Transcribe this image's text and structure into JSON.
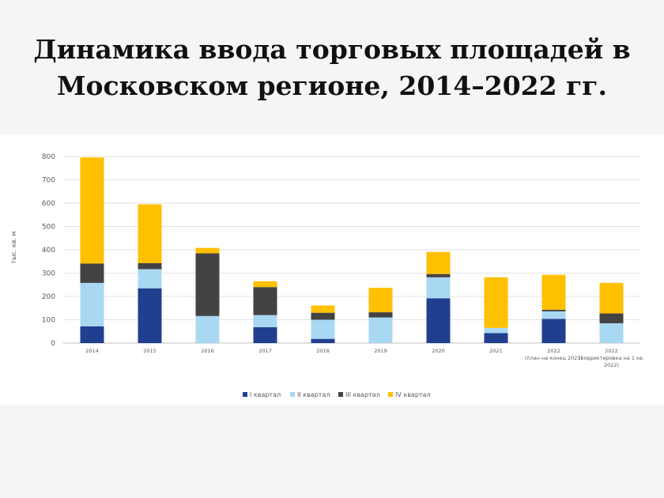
{
  "slide": {
    "title_line1": "Динамика ввода торговых площадей в",
    "title_line2": "Московском регионе, 2014–2022 гг."
  },
  "chart_data": {
    "type": "bar",
    "stacked": true,
    "ylabel": "тыс. кв. м",
    "ylim": [
      0,
      800
    ],
    "yticks": [
      0,
      100,
      200,
      300,
      400,
      500,
      600,
      700,
      800
    ],
    "grid": true,
    "legend_position": "bottom",
    "categories": [
      [
        "2014"
      ],
      [
        "2015"
      ],
      [
        "2016"
      ],
      [
        "2017"
      ],
      [
        "2018"
      ],
      [
        "2019"
      ],
      [
        "2020"
      ],
      [
        "2021"
      ],
      [
        "2022",
        "(план на конец 2021)"
      ],
      [
        "2022",
        "(корректировка на 1 кв.",
        "2022)"
      ]
    ],
    "series": [
      {
        "name": "I квартал",
        "color": "#203f8f",
        "values": [
          72,
          235,
          0,
          68,
          18,
          0,
          192,
          43,
          104,
          0
        ]
      },
      {
        "name": "II квартал",
        "color": "#a9d8f3",
        "values": [
          186,
          82,
          116,
          52,
          82,
          110,
          90,
          22,
          32,
          85
        ]
      },
      {
        "name": "III квартал",
        "color": "#434343",
        "values": [
          83,
          26,
          269,
          120,
          30,
          22,
          14,
          0,
          7,
          42
        ]
      },
      {
        "name": "IV квартал",
        "color": "#ffc000",
        "values": [
          455,
          252,
          23,
          25,
          31,
          105,
          95,
          217,
          150,
          131
        ]
      }
    ]
  }
}
